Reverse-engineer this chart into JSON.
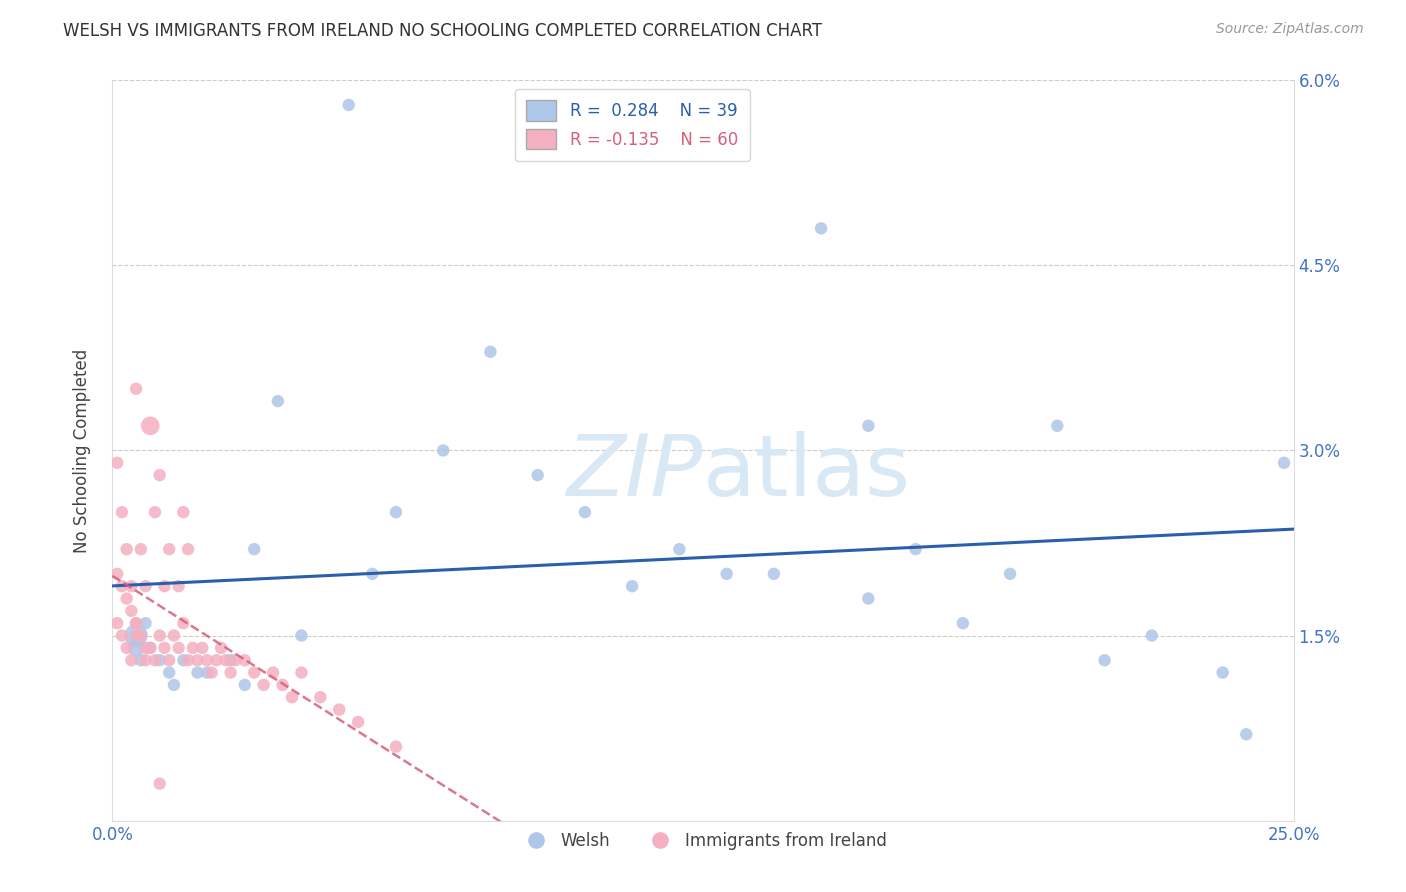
{
  "title": "WELSH VS IMMIGRANTS FROM IRELAND NO SCHOOLING COMPLETED CORRELATION CHART",
  "source": "Source: ZipAtlas.com",
  "ylabel": "No Schooling Completed",
  "xmin": 0.0,
  "xmax": 0.25,
  "ymin": 0.0,
  "ymax": 0.06,
  "xticks": [
    0.0,
    0.05,
    0.1,
    0.15,
    0.2,
    0.25
  ],
  "xticklabels": [
    "0.0%",
    "",
    "",
    "",
    "",
    "25.0%"
  ],
  "yticks": [
    0.0,
    0.015,
    0.03,
    0.045,
    0.06
  ],
  "yticklabels_right": [
    "",
    "1.5%",
    "3.0%",
    "4.5%",
    "6.0%"
  ],
  "welsh_R": 0.284,
  "welsh_N": 39,
  "ireland_R": -0.135,
  "ireland_N": 60,
  "welsh_color": "#aec6e8",
  "ireland_color": "#f4afc0",
  "welsh_line_color": "#2b5fad",
  "ireland_line_color": "#d4607a",
  "tick_color": "#4472c4",
  "watermark_color": "#d8e8f4",
  "welsh_x": [
    0.005,
    0.005,
    0.006,
    0.007,
    0.008,
    0.01,
    0.012,
    0.013,
    0.015,
    0.018,
    0.02,
    0.025,
    0.028,
    0.03,
    0.04,
    0.05,
    0.055,
    0.07,
    0.09,
    0.1,
    0.12,
    0.14,
    0.15,
    0.16,
    0.18,
    0.19,
    0.2,
    0.22,
    0.235,
    0.24,
    0.248,
    0.035,
    0.06,
    0.08,
    0.13,
    0.17,
    0.21,
    0.11,
    0.16
  ],
  "welsh_y": [
    0.015,
    0.014,
    0.013,
    0.016,
    0.014,
    0.013,
    0.012,
    0.011,
    0.013,
    0.012,
    0.012,
    0.013,
    0.011,
    0.022,
    0.015,
    0.058,
    0.02,
    0.03,
    0.028,
    0.025,
    0.022,
    0.02,
    0.048,
    0.018,
    0.016,
    0.02,
    0.032,
    0.015,
    0.012,
    0.007,
    0.029,
    0.034,
    0.025,
    0.038,
    0.02,
    0.022,
    0.013,
    0.019,
    0.032
  ],
  "welsh_sizes": [
    280,
    150,
    80,
    80,
    80,
    80,
    80,
    80,
    80,
    80,
    80,
    80,
    80,
    80,
    80,
    80,
    80,
    80,
    80,
    80,
    80,
    80,
    80,
    80,
    80,
    80,
    80,
    80,
    80,
    80,
    80,
    80,
    80,
    80,
    80,
    80,
    80,
    80,
    80
  ],
  "ireland_x": [
    0.001,
    0.001,
    0.002,
    0.002,
    0.003,
    0.003,
    0.004,
    0.004,
    0.005,
    0.005,
    0.005,
    0.006,
    0.006,
    0.007,
    0.007,
    0.008,
    0.008,
    0.009,
    0.009,
    0.01,
    0.01,
    0.011,
    0.011,
    0.012,
    0.012,
    0.013,
    0.014,
    0.014,
    0.015,
    0.015,
    0.016,
    0.016,
    0.017,
    0.018,
    0.019,
    0.02,
    0.021,
    0.022,
    0.023,
    0.024,
    0.025,
    0.026,
    0.028,
    0.03,
    0.032,
    0.034,
    0.036,
    0.038,
    0.04,
    0.044,
    0.048,
    0.052,
    0.06,
    0.001,
    0.002,
    0.003,
    0.004,
    0.005,
    0.007,
    0.01
  ],
  "ireland_y": [
    0.02,
    0.016,
    0.019,
    0.015,
    0.018,
    0.014,
    0.017,
    0.013,
    0.016,
    0.015,
    0.035,
    0.015,
    0.022,
    0.014,
    0.019,
    0.014,
    0.032,
    0.013,
    0.025,
    0.015,
    0.028,
    0.014,
    0.019,
    0.013,
    0.022,
    0.015,
    0.014,
    0.019,
    0.016,
    0.025,
    0.013,
    0.022,
    0.014,
    0.013,
    0.014,
    0.013,
    0.012,
    0.013,
    0.014,
    0.013,
    0.012,
    0.013,
    0.013,
    0.012,
    0.011,
    0.012,
    0.011,
    0.01,
    0.012,
    0.01,
    0.009,
    0.008,
    0.006,
    0.029,
    0.025,
    0.022,
    0.019,
    0.016,
    0.013,
    0.003
  ],
  "ireland_sizes": [
    80,
    80,
    80,
    80,
    80,
    80,
    80,
    80,
    80,
    80,
    80,
    80,
    80,
    80,
    80,
    80,
    180,
    80,
    80,
    80,
    80,
    80,
    80,
    80,
    80,
    80,
    80,
    80,
    80,
    80,
    80,
    80,
    80,
    80,
    80,
    80,
    80,
    80,
    80,
    80,
    80,
    80,
    80,
    80,
    80,
    80,
    80,
    80,
    80,
    80,
    80,
    80,
    80,
    80,
    80,
    80,
    80,
    80,
    80,
    80
  ]
}
